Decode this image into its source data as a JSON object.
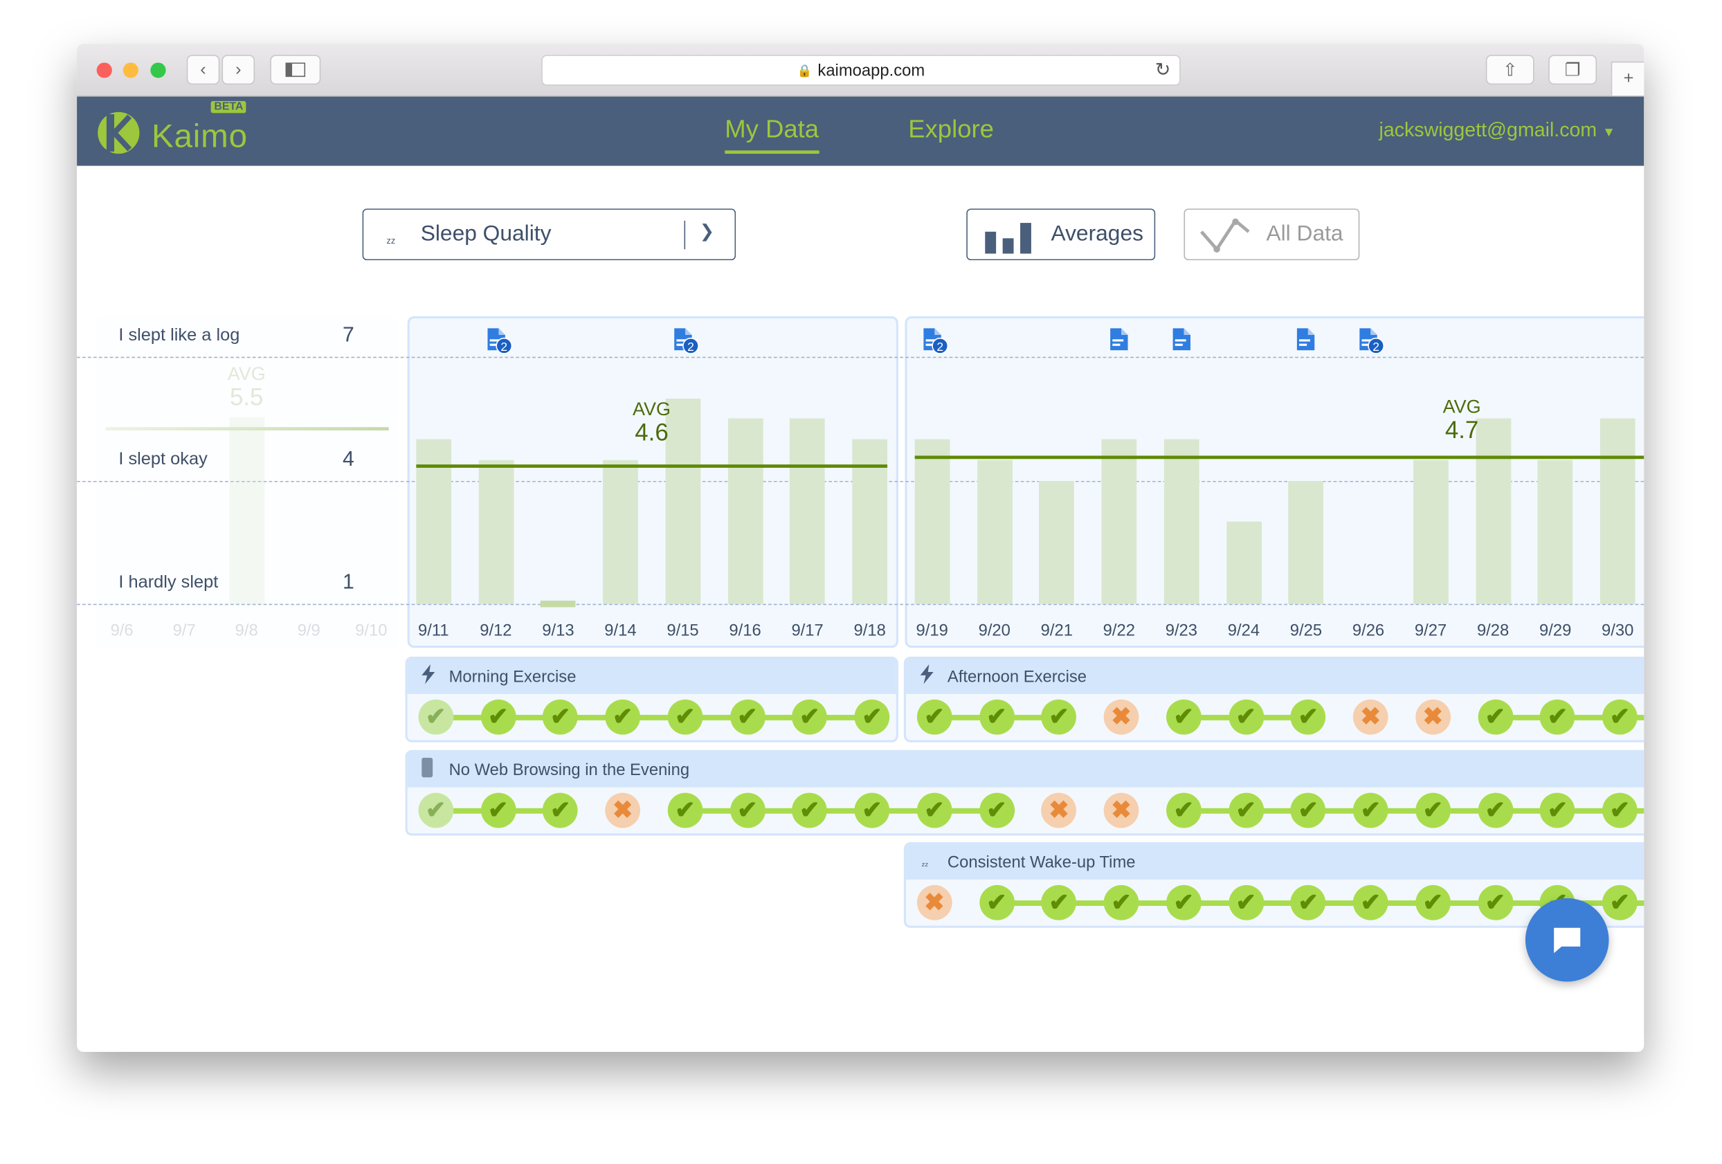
{
  "browser": {
    "url": "kaimoapp.com"
  },
  "nav": {
    "brand": "Kaimo",
    "badge": "BETA",
    "links": [
      {
        "label": "My Data",
        "active": true
      },
      {
        "label": "Explore",
        "active": false
      }
    ],
    "user": "jackswiggett@gmail.com"
  },
  "controls": {
    "metric": "Sleep Quality",
    "averages_label": "Averages",
    "alldata_label": "All Data",
    "selected_view": "Averages"
  },
  "colors": {
    "nav": "#4a5f7b",
    "accent": "#9dc73c",
    "bar": "#d9e7cf",
    "avg_line": "#5f8a06",
    "check": "#a9dc4c",
    "miss": "#f5cfae",
    "chat": "#3d7fd6"
  },
  "chart_data": {
    "type": "bar",
    "y_levels": [
      {
        "label": "I slept like a log",
        "value": 7
      },
      {
        "label": "I slept okay",
        "value": 4
      },
      {
        "label": "I hardly slept",
        "value": 1
      }
    ],
    "ylim": [
      1,
      7
    ],
    "faded_dates": [
      "9/6",
      "9/7",
      "9/8",
      "9/9",
      "9/10"
    ],
    "faded_avg": {
      "label": "AVG",
      "value": "5.5"
    },
    "periods": [
      {
        "avg_label": "AVG",
        "avg": 4.6,
        "dates": [
          "9/11",
          "9/12",
          "9/13",
          "9/14",
          "9/15",
          "9/16",
          "9/17",
          "9/18"
        ],
        "values": [
          5,
          4.5,
          1,
          4.5,
          6,
          5.5,
          5.5,
          5
        ],
        "notes": [
          null,
          "2",
          null,
          null,
          "2",
          null,
          null,
          null
        ]
      },
      {
        "avg_label": "AVG",
        "avg": 4.7,
        "dates": [
          "9/19",
          "9/20",
          "9/21",
          "9/22",
          "9/23",
          "9/24",
          "9/25",
          "9/26",
          "9/27",
          "9/28",
          "9/29",
          "9/30"
        ],
        "values": [
          5,
          4.5,
          4,
          5,
          5,
          3,
          4,
          null,
          4.5,
          5.5,
          4.5,
          5.5
        ],
        "notes": [
          "2",
          null,
          null,
          "1",
          "1",
          null,
          "1",
          "2",
          null,
          null,
          null,
          null
        ]
      }
    ]
  },
  "habits": [
    {
      "name": "Morning Exercise",
      "icon": "lightning-icon",
      "start": "9/11",
      "status": [
        1,
        1,
        1,
        1,
        1,
        1,
        1,
        1
      ]
    },
    {
      "name": "Afternoon Exercise",
      "icon": "lightning-icon",
      "start": "9/19",
      "status": [
        1,
        1,
        1,
        0,
        1,
        1,
        1,
        0,
        0,
        1,
        1,
        1
      ]
    },
    {
      "name": "No Web Browsing in the Evening",
      "icon": "phone-icon",
      "start": "9/11",
      "status": [
        1,
        1,
        1,
        0,
        1,
        1,
        1,
        1,
        1,
        1,
        0,
        0,
        1,
        1,
        1,
        1,
        1,
        1,
        1,
        1
      ]
    },
    {
      "name": "Consistent Wake-up Time",
      "icon": "sleep-icon",
      "start": "9/19",
      "status": [
        0,
        1,
        1,
        1,
        1,
        1,
        1,
        1,
        1,
        1,
        1,
        1
      ]
    }
  ]
}
